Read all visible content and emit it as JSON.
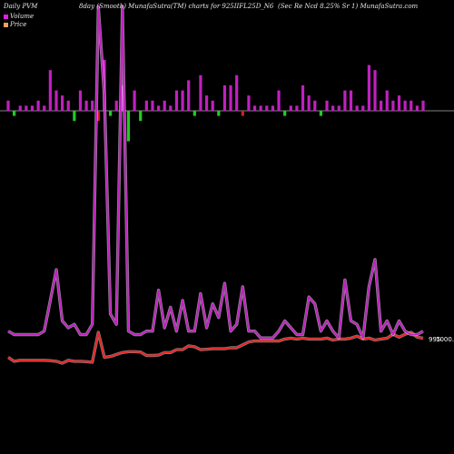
{
  "header": {
    "left": "Daily PVM",
    "center": "8day (Smooth) MunafaSutra(TM) charts for 925IIFL25D_N6",
    "right": "(Sec Re Ncd 8.25% Sr 1) MunafaSutra.com"
  },
  "legend": {
    "volume_label": "Volume",
    "price_label": "Price",
    "volume_color": "#e020e0",
    "price_color": "#f0a060"
  },
  "last_price_label": "995",
  "last_price_value_label": "1000.23",
  "colors": {
    "background": "#000000",
    "volume_up": "#c020c0",
    "volume_down_green": "#22cc22",
    "volume_down_red": "#cc2222",
    "volume_line": "#c020c0",
    "price_line": "#ee2222",
    "baseline": "#aaaaaa"
  },
  "chart_data": {
    "type": "line",
    "title": "8day (Smooth) MunafaSutra(TM) charts for 925IIFL25D_N6",
    "series": [
      {
        "name": "Volume",
        "values": [
          3,
          2,
          2,
          2,
          2,
          2,
          3,
          12,
          21,
          6,
          4,
          5,
          2,
          2,
          5,
          98,
          72,
          8,
          5,
          98,
          3,
          2,
          2,
          3,
          3,
          15,
          4,
          10,
          3,
          12,
          3,
          3,
          14,
          4,
          11,
          7,
          17,
          3,
          5,
          16,
          3,
          3,
          1,
          1,
          1,
          3,
          6,
          4,
          2,
          2,
          13,
          11,
          3,
          6,
          3,
          1,
          18,
          6,
          5,
          1,
          16,
          24,
          3,
          6,
          2,
          6,
          3,
          2,
          2,
          3
        ]
      },
      {
        "name": "Price",
        "values": [
          994.5,
          994.3,
          994.35,
          994.35,
          994.35,
          994.35,
          994.35,
          994.33,
          994.3,
          994.2,
          994.35,
          994.3,
          994.3,
          994.28,
          994.25,
          995.8,
          994.5,
          994.55,
          994.65,
          994.75,
          994.8,
          994.8,
          994.78,
          994.6,
          994.6,
          994.62,
          994.75,
          994.75,
          994.9,
          994.9,
          995.1,
          995.05,
          994.9,
          994.92,
          994.95,
          994.95,
          994.95,
          995.0,
          995.0,
          995.15,
          995.3,
          995.35,
          995.35,
          995.35,
          995.35,
          995.35,
          995.45,
          995.5,
          995.45,
          995.5,
          995.45,
          995.45,
          995.45,
          995.5,
          995.4,
          995.45,
          995.45,
          995.5,
          995.6,
          995.45,
          995.5,
          995.4,
          995.45,
          995.5,
          995.7,
          995.55,
          995.7,
          995.8,
          995.55,
          995.5
        ]
      }
    ],
    "volume_bars": [
      2,
      -1,
      1,
      1,
      1,
      2,
      1,
      8,
      4,
      3,
      2,
      -2,
      4,
      2,
      2,
      -2,
      10,
      -1,
      2,
      5,
      -6,
      4,
      -2,
      2,
      2,
      1,
      2,
      1,
      4,
      4,
      6,
      -1,
      7,
      3,
      2,
      -1,
      5,
      5,
      7,
      -1,
      3,
      1,
      1,
      1,
      1,
      4,
      -1,
      1,
      1,
      5,
      3,
      2,
      -1,
      2,
      1,
      1,
      4,
      4,
      1,
      1,
      9,
      8,
      2,
      4,
      2,
      3,
      2,
      2,
      1,
      2
    ],
    "legend_placement": "top-left",
    "grid": false
  }
}
